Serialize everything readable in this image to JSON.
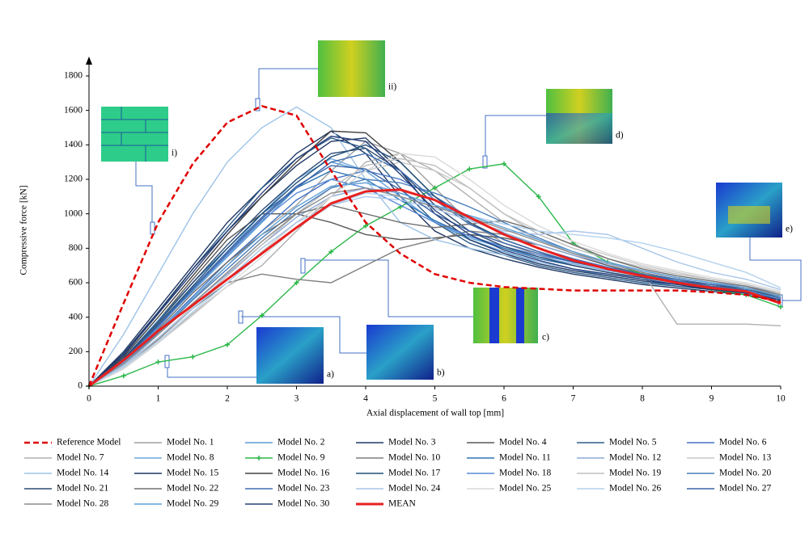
{
  "chart_data": {
    "type": "line",
    "x_label": "Axial displacement of wall top [mm]",
    "y_label": "Compressive force [kN]",
    "x": [
      0,
      0.5,
      1,
      1.5,
      2,
      2.5,
      3,
      3.5,
      4,
      4.5,
      5,
      5.5,
      6,
      6.5,
      7,
      7.5,
      8,
      8.5,
      9,
      9.5,
      10
    ],
    "xlim": [
      0,
      10
    ],
    "xticks": [
      0,
      1,
      2,
      3,
      4,
      5,
      6,
      7,
      8,
      9,
      10
    ],
    "ylim": [
      0,
      1800
    ],
    "yticks": [
      0,
      200,
      400,
      600,
      800,
      1000,
      1200,
      1400,
      1600,
      1800
    ],
    "annotations": [
      "i)",
      "ii)",
      "a)",
      "b)",
      "c)",
      "d)",
      "e)"
    ],
    "series": [
      {
        "name": "Reference Model",
        "color": "#e00000",
        "line_style": "dashed",
        "values": [
          0,
          480,
          950,
          1290,
          1530,
          1625,
          1570,
          1250,
          950,
          770,
          650,
          600,
          575,
          565,
          555,
          555,
          555,
          555,
          545,
          530,
          490
        ]
      },
      {
        "name": "Model No. 1",
        "color": "#a0a0a0",
        "values": [
          0,
          120,
          300,
          500,
          700,
          900,
          1050,
          1250,
          1420,
          1350,
          1150,
          950,
          830,
          760,
          700,
          660,
          620,
          590,
          560,
          540,
          500
        ]
      },
      {
        "name": "Model No. 2",
        "color": "#5b9bd5",
        "values": [
          0,
          150,
          350,
          550,
          750,
          950,
          1150,
          1300,
          1250,
          1100,
          950,
          850,
          780,
          720,
          680,
          640,
          610,
          580,
          560,
          540,
          500
        ]
      },
      {
        "name": "Model No. 3",
        "color": "#1f3864",
        "values": [
          0,
          200,
          450,
          700,
          950,
          1150,
          1350,
          1480,
          1350,
          1100,
          900,
          800,
          740,
          690,
          650,
          620,
          590,
          570,
          550,
          530,
          490
        ]
      },
      {
        "name": "Model No. 4",
        "color": "#595959",
        "values": [
          0,
          150,
          380,
          620,
          850,
          1000,
          1000,
          950,
          880,
          850,
          860,
          880,
          860,
          820,
          760,
          700,
          650,
          610,
          580,
          560,
          520
        ]
      },
      {
        "name": "Model No. 5",
        "color": "#2e5d8a",
        "values": [
          0,
          180,
          420,
          680,
          920,
          1150,
          1320,
          1440,
          1380,
          1150,
          950,
          830,
          760,
          700,
          660,
          630,
          600,
          580,
          560,
          540,
          500
        ]
      },
      {
        "name": "Model No. 6",
        "color": "#4472c4",
        "values": [
          0,
          130,
          320,
          520,
          720,
          900,
          1080,
          1200,
          1250,
          1200,
          1100,
          980,
          880,
          800,
          740,
          690,
          650,
          610,
          580,
          560,
          510
        ]
      },
      {
        "name": "Model No. 7",
        "color": "#b0b0b0",
        "values": [
          0,
          100,
          250,
          420,
          580,
          700,
          900,
          1100,
          1300,
          1350,
          1250,
          1100,
          950,
          850,
          770,
          710,
          660,
          360,
          360,
          360,
          350
        ]
      },
      {
        "name": "Model No. 8",
        "color": "#6fa8dc",
        "values": [
          0,
          140,
          350,
          570,
          780,
          1000,
          1200,
          1320,
          1250,
          1100,
          950,
          860,
          800,
          750,
          710,
          670,
          640,
          610,
          580,
          550,
          510
        ]
      },
      {
        "name": "Model No. 9",
        "color": "#2db84a",
        "marker": "+",
        "values": [
          0,
          60,
          140,
          170,
          240,
          410,
          600,
          780,
          930,
          1040,
          1150,
          1260,
          1290,
          1100,
          830,
          720,
          650,
          600,
          560,
          530,
          460
        ]
      },
      {
        "name": "Model No. 10",
        "color": "#7f7f7f",
        "values": [
          0,
          110,
          270,
          450,
          600,
          650,
          620,
          600,
          700,
          800,
          850,
          900,
          880,
          820,
          760,
          710,
          660,
          620,
          590,
          560,
          520
        ]
      },
      {
        "name": "Model No. 11",
        "color": "#2f75b5",
        "values": [
          0,
          160,
          380,
          600,
          800,
          1000,
          1150,
          1250,
          1200,
          1080,
          960,
          870,
          800,
          740,
          700,
          660,
          630,
          600,
          570,
          550,
          500
        ]
      },
      {
        "name": "Model No. 12",
        "color": "#8eaadb",
        "values": [
          0,
          120,
          300,
          480,
          650,
          820,
          980,
          1100,
          1150,
          1120,
          1050,
          970,
          890,
          820,
          760,
          710,
          670,
          630,
          600,
          580,
          540
        ]
      },
      {
        "name": "Model No. 13",
        "color": "#c9c9c9",
        "values": [
          0,
          100,
          260,
          430,
          600,
          780,
          950,
          1100,
          1250,
          1300,
          1250,
          1150,
          1000,
          900,
          820,
          760,
          700,
          660,
          620,
          590,
          540
        ]
      },
      {
        "name": "Model No. 14",
        "color": "#9dc3e6",
        "values": [
          0,
          300,
          650,
          1000,
          1300,
          1500,
          1620,
          1500,
          1200,
          950,
          850,
          800,
          760,
          720,
          680,
          650,
          620,
          600,
          580,
          560,
          520
        ]
      },
      {
        "name": "Model No. 15",
        "color": "#203864",
        "values": [
          0,
          190,
          430,
          680,
          900,
          1100,
          1280,
          1420,
          1440,
          1250,
          1000,
          850,
          770,
          710,
          670,
          640,
          610,
          590,
          560,
          540,
          500
        ]
      },
      {
        "name": "Model No. 16",
        "color": "#404040",
        "values": [
          0,
          170,
          400,
          640,
          880,
          1100,
          1300,
          1480,
          1470,
          1300,
          1100,
          950,
          850,
          780,
          720,
          680,
          640,
          610,
          590,
          560,
          520
        ]
      },
      {
        "name": "Model No. 17",
        "color": "#1f4e79",
        "values": [
          0,
          150,
          360,
          580,
          800,
          1000,
          1180,
          1330,
          1400,
          1300,
          1100,
          950,
          850,
          780,
          720,
          680,
          640,
          610,
          580,
          560,
          510
        ]
      },
      {
        "name": "Model No. 18",
        "color": "#5a8ad6",
        "values": [
          0,
          140,
          340,
          560,
          760,
          960,
          1120,
          1200,
          1150,
          1050,
          950,
          870,
          810,
          760,
          720,
          680,
          650,
          620,
          590,
          570,
          530
        ]
      },
      {
        "name": "Model No. 19",
        "color": "#bfbfbf",
        "values": [
          0,
          110,
          280,
          460,
          640,
          820,
          1000,
          1150,
          1280,
          1320,
          1280,
          1150,
          1000,
          880,
          800,
          740,
          690,
          650,
          620,
          590,
          540
        ]
      },
      {
        "name": "Model No. 20",
        "color": "#4a7ebb",
        "values": [
          0,
          130,
          310,
          500,
          680,
          860,
          1020,
          1150,
          1200,
          1180,
          1120,
          1040,
          950,
          860,
          780,
          720,
          670,
          630,
          600,
          570,
          530
        ]
      },
      {
        "name": "Model No. 21",
        "color": "#2c4a73",
        "values": [
          0,
          160,
          370,
          600,
          820,
          1020,
          1200,
          1350,
          1380,
          1250,
          1050,
          900,
          810,
          750,
          700,
          660,
          630,
          600,
          580,
          560,
          510
        ]
      },
      {
        "name": "Model No. 22",
        "color": "#707070",
        "values": [
          0,
          140,
          330,
          540,
          720,
          880,
          1000,
          1050,
          1000,
          950,
          920,
          940,
          960,
          900,
          820,
          740,
          680,
          640,
          610,
          580,
          530
        ]
      },
      {
        "name": "Model No. 23",
        "color": "#3f6fb0",
        "values": [
          0,
          150,
          350,
          560,
          770,
          970,
          1150,
          1300,
          1350,
          1250,
          1080,
          940,
          850,
          780,
          720,
          680,
          640,
          610,
          580,
          560,
          510
        ]
      },
      {
        "name": "Model No. 24",
        "color": "#a9c5e8",
        "values": [
          0,
          120,
          280,
          450,
          620,
          800,
          950,
          1050,
          1100,
          1080,
          1030,
          960,
          900,
          880,
          900,
          880,
          800,
          720,
          660,
          620,
          560
        ]
      },
      {
        "name": "Model No. 25",
        "color": "#d9d9d9",
        "values": [
          0,
          100,
          250,
          410,
          580,
          750,
          920,
          1100,
          1250,
          1350,
          1330,
          1200,
          1050,
          930,
          840,
          770,
          710,
          670,
          630,
          600,
          550
        ]
      },
      {
        "name": "Model No. 26",
        "color": "#b4d2ee",
        "values": [
          0,
          110,
          260,
          430,
          600,
          770,
          920,
          1050,
          1120,
          1100,
          1050,
          990,
          940,
          900,
          880,
          860,
          830,
          780,
          720,
          660,
          570
        ]
      },
      {
        "name": "Model No. 27",
        "color": "#3a64a8",
        "values": [
          0,
          150,
          350,
          570,
          780,
          980,
          1160,
          1280,
          1260,
          1140,
          1000,
          900,
          830,
          770,
          720,
          680,
          650,
          620,
          590,
          570,
          520
        ]
      },
      {
        "name": "Model No. 28",
        "color": "#8c8c8c",
        "values": [
          0,
          130,
          300,
          480,
          660,
          840,
          1000,
          1120,
          1150,
          1100,
          1040,
          980,
          910,
          840,
          770,
          720,
          670,
          630,
          600,
          570,
          530
        ]
      },
      {
        "name": "Model No. 29",
        "color": "#5fa0d8",
        "values": [
          0,
          140,
          320,
          510,
          700,
          880,
          1040,
          1160,
          1180,
          1120,
          1050,
          990,
          920,
          850,
          780,
          720,
          670,
          630,
          600,
          570,
          520
        ]
      },
      {
        "name": "Model No. 30",
        "color": "#263f7a",
        "values": [
          0,
          180,
          420,
          660,
          900,
          1120,
          1320,
          1450,
          1420,
          1230,
          1020,
          880,
          790,
          730,
          680,
          650,
          620,
          590,
          570,
          540,
          500
        ]
      },
      {
        "name": "MEAN",
        "color": "#e82020",
        "line_style": "bold",
        "values": [
          0,
          150,
          320,
          470,
          620,
          770,
          920,
          1060,
          1130,
          1140,
          1080,
          980,
          880,
          800,
          730,
          680,
          640,
          600,
          570,
          550,
          480
        ]
      }
    ]
  }
}
